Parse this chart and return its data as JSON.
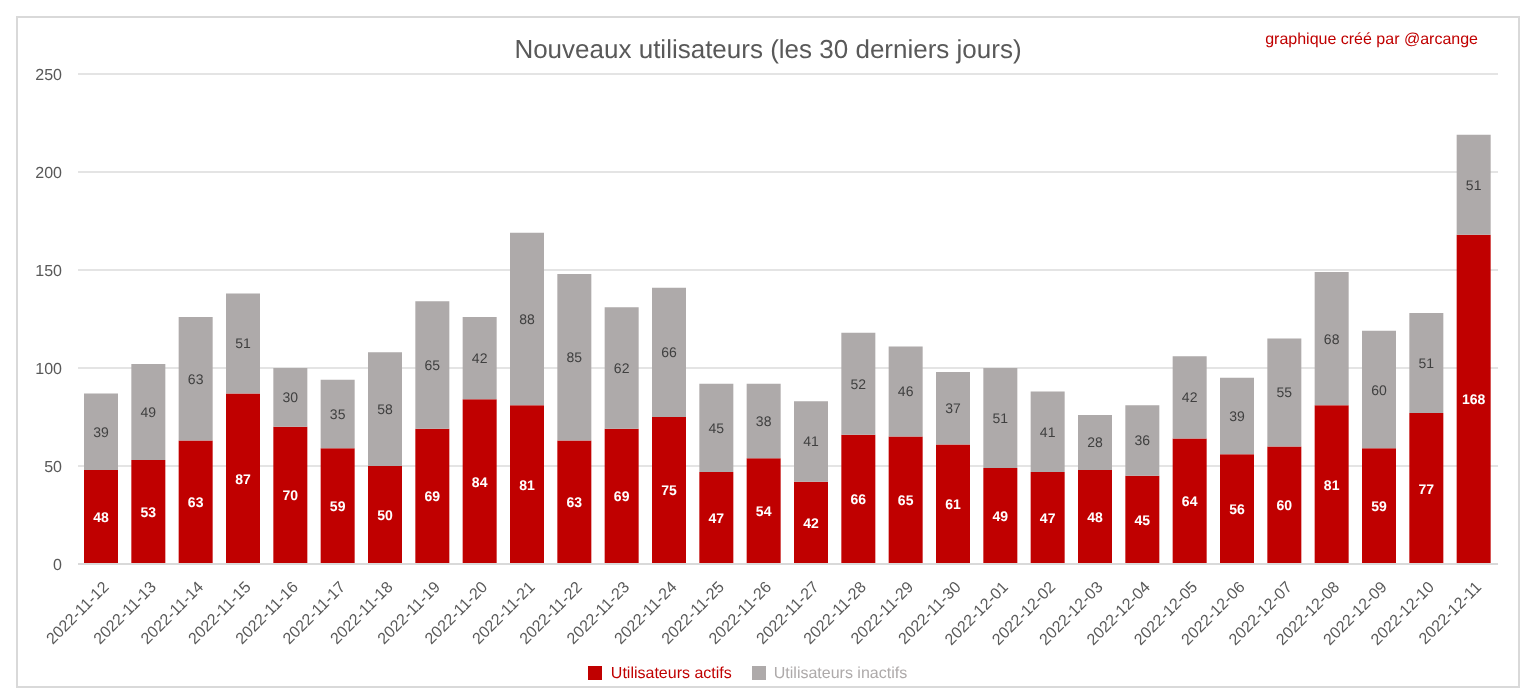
{
  "chart_data": {
    "type": "bar",
    "title": "Nouveaux utilisateurs (les 30 derniers  jours)",
    "annotations": [
      "graphique créé par @arcange"
    ],
    "categories": [
      "2022-11-12",
      "2022-11-13",
      "2022-11-14",
      "2022-11-15",
      "2022-11-16",
      "2022-11-17",
      "2022-11-18",
      "2022-11-19",
      "2022-11-20",
      "2022-11-21",
      "2022-11-22",
      "2022-11-23",
      "2022-11-24",
      "2022-11-25",
      "2022-11-26",
      "2022-11-27",
      "2022-11-28",
      "2022-11-29",
      "2022-11-30",
      "2022-12-01",
      "2022-12-02",
      "2022-12-03",
      "2022-12-04",
      "2022-12-05",
      "2022-12-06",
      "2022-12-07",
      "2022-12-08",
      "2022-12-09",
      "2022-12-10",
      "2022-12-11"
    ],
    "series": [
      {
        "name": "Utilisateurs actifs",
        "color": "#c00000",
        "values": [
          48,
          53,
          63,
          87,
          70,
          59,
          50,
          69,
          84,
          81,
          63,
          69,
          75,
          47,
          54,
          42,
          66,
          65,
          61,
          49,
          47,
          48,
          45,
          64,
          56,
          60,
          81,
          59,
          77,
          168
        ]
      },
      {
        "name": "Utilisateurs inactifs",
        "color": "#aeaaaa",
        "values": [
          39,
          49,
          63,
          51,
          30,
          35,
          58,
          65,
          42,
          88,
          85,
          62,
          66,
          45,
          38,
          41,
          52,
          46,
          37,
          51,
          41,
          28,
          36,
          42,
          39,
          55,
          68,
          60,
          51,
          51
        ]
      }
    ],
    "stacked": true,
    "data_labels": true,
    "ylim": [
      0,
      250
    ],
    "yticks": [
      0,
      50,
      100,
      150,
      200,
      250
    ],
    "grid": "y",
    "legend": "bottom"
  }
}
